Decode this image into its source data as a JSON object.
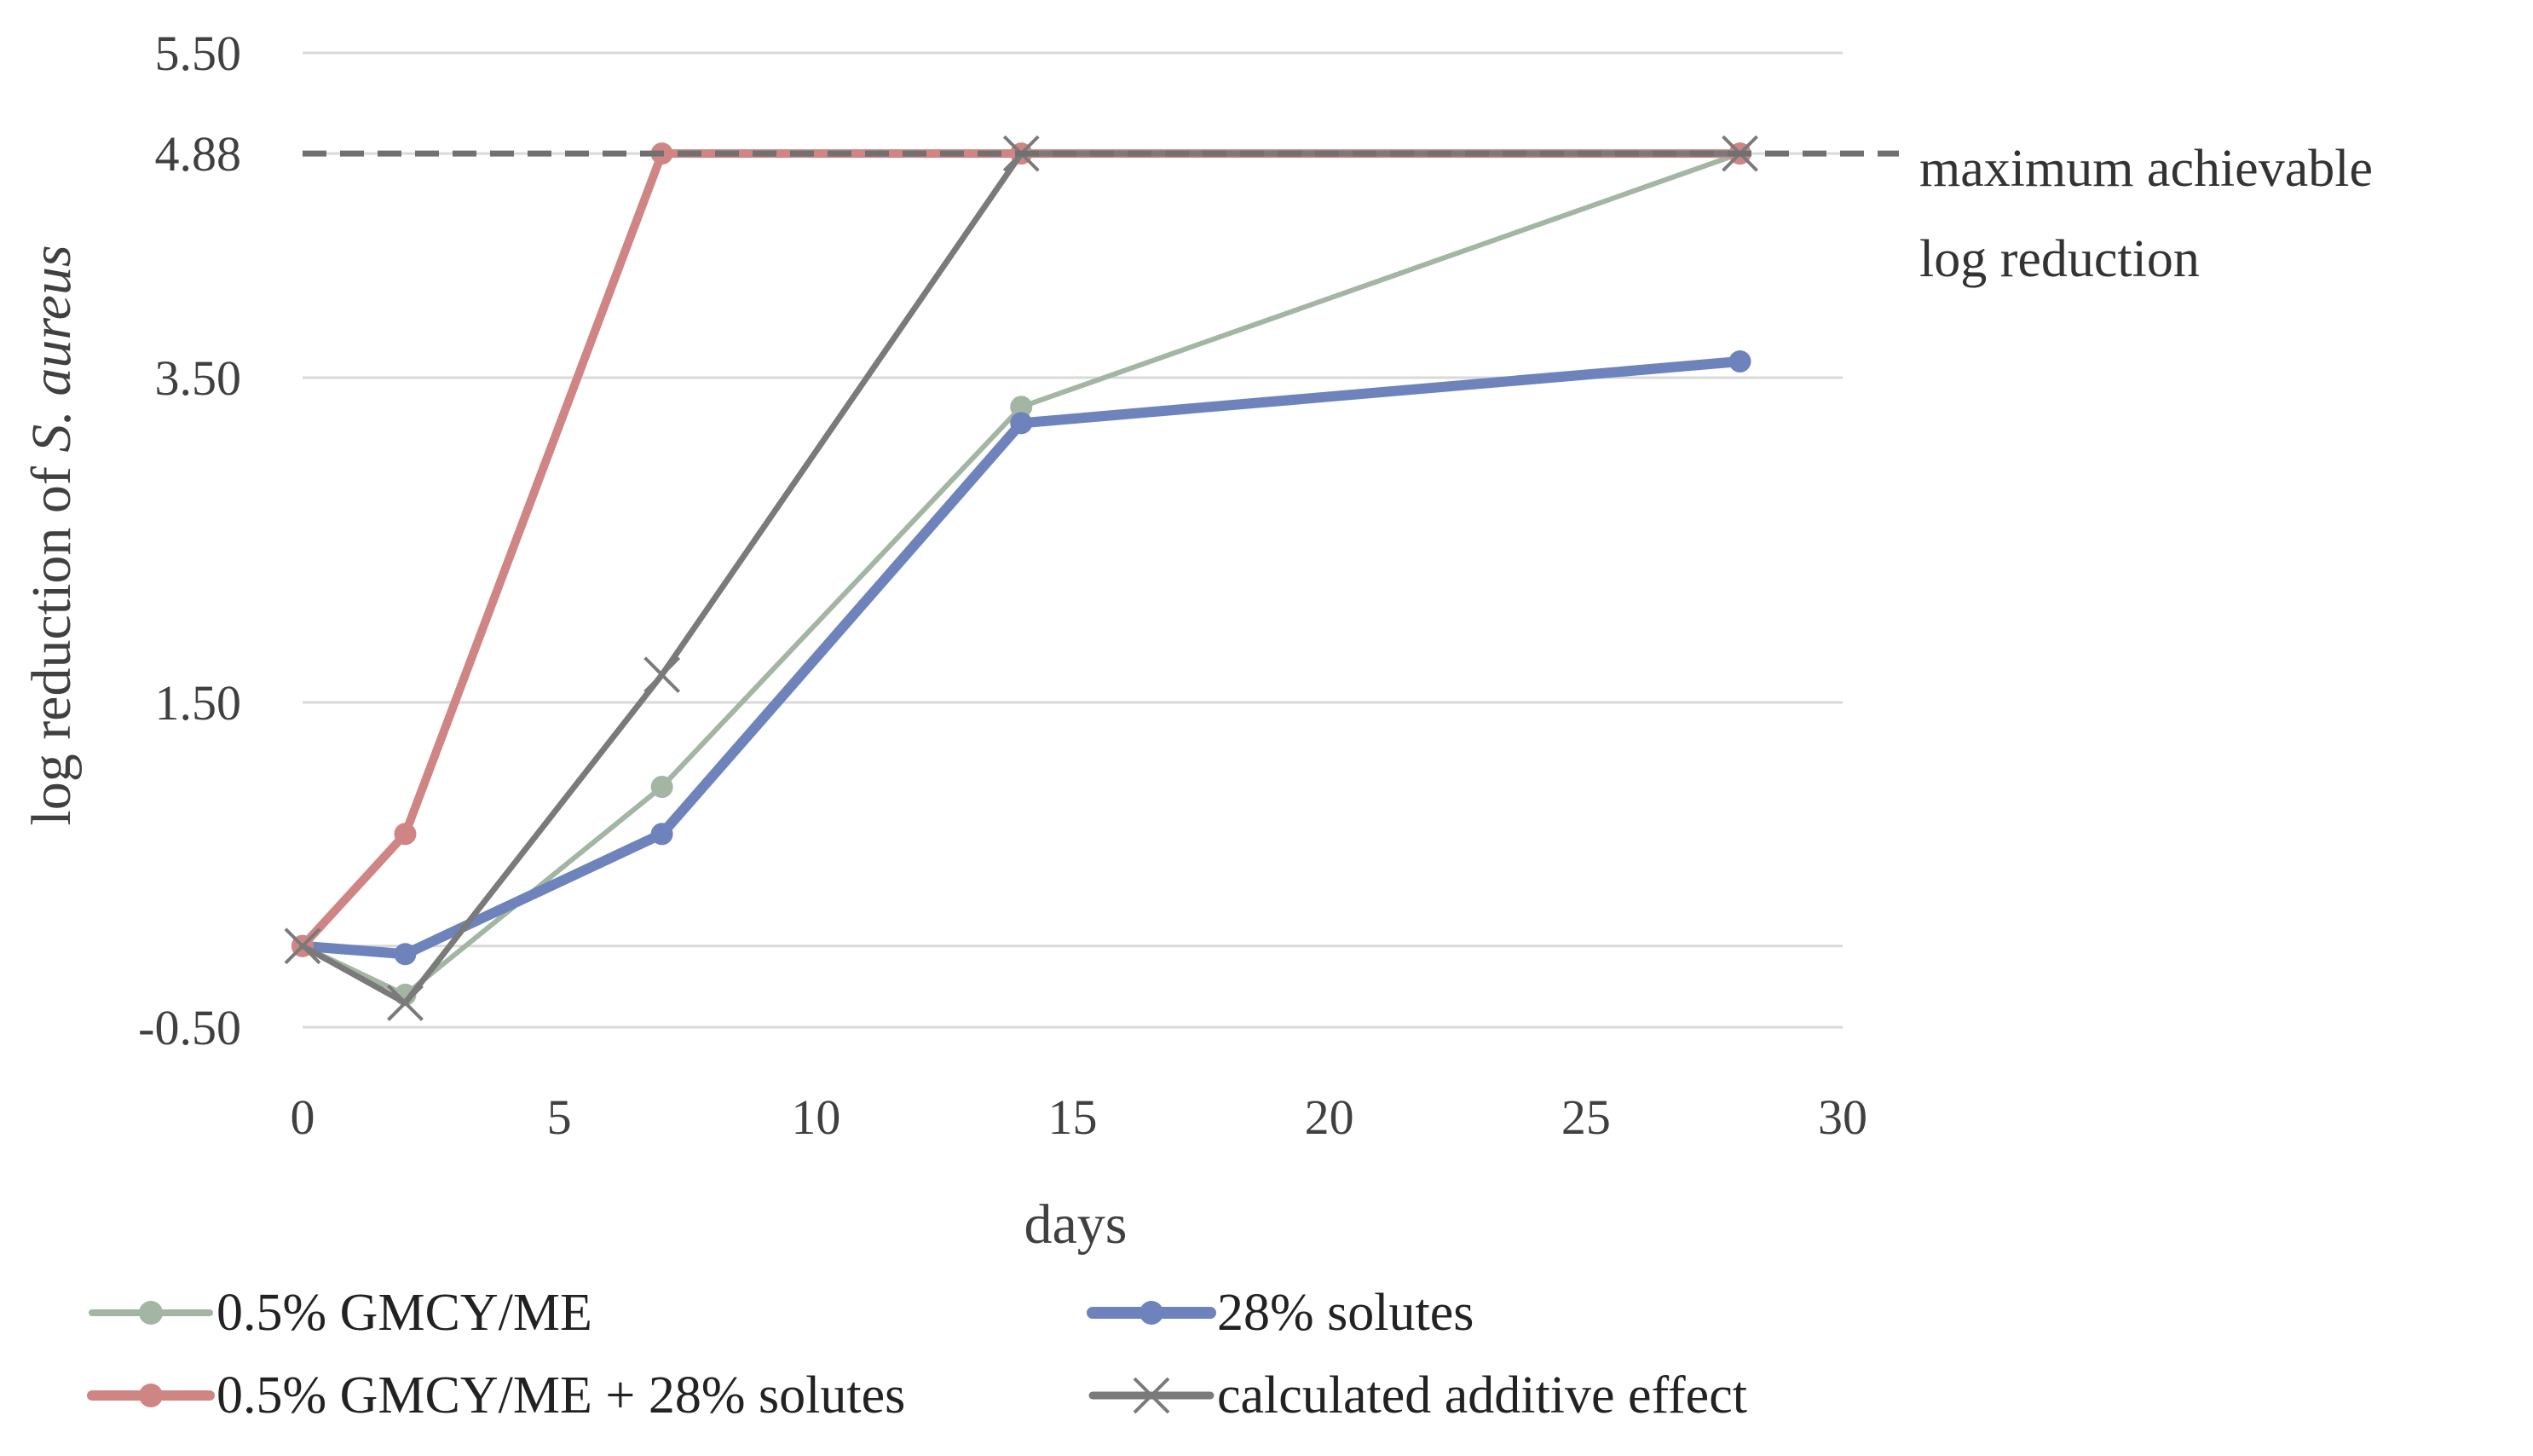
{
  "chart_data": {
    "type": "line",
    "title": "",
    "xlabel": "days",
    "ylabel_prefix": "log reduction of ",
    "ylabel_italic": "S. aureus",
    "xlim": [
      0,
      30
    ],
    "ylim": [
      -0.5,
      5.5
    ],
    "x_ticks": [
      0,
      5,
      10,
      15,
      20,
      25,
      30
    ],
    "y_tick_labels": [
      {
        "value": 5.5,
        "label": "5.50"
      },
      {
        "value": 4.88,
        "label": "4.88"
      },
      {
        "value": 3.5,
        "label": "3.50"
      },
      {
        "value": 1.5,
        "label": "1.50"
      },
      {
        "value": -0.5,
        "label": "-0.50"
      }
    ],
    "gridlines": [
      5.5,
      4.88,
      3.5,
      1.5,
      0,
      -0.5
    ],
    "grid": true,
    "legend_position": "bottom",
    "series": [
      {
        "name": "0.5% GMCY/ME",
        "color": "#a3b5a3",
        "marker": "circle",
        "x": [
          0,
          2,
          7,
          14,
          28
        ],
        "y": [
          0.0,
          -0.3,
          0.98,
          3.32,
          4.88
        ]
      },
      {
        "name": "28% solutes",
        "color": "#6e83bb",
        "marker": "circle",
        "x": [
          0,
          2,
          7,
          14,
          28
        ],
        "y": [
          0.0,
          -0.05,
          0.69,
          3.22,
          3.6
        ]
      },
      {
        "name": "0.5% GMCY/ME + 28% solutes",
        "color": "#d08585",
        "marker": "circle",
        "x": [
          0,
          2,
          7,
          14,
          28
        ],
        "y": [
          0.0,
          0.69,
          4.88,
          4.88,
          4.88
        ]
      },
      {
        "name": "calculated additive effect",
        "color": "#7a7a7a",
        "marker": "x",
        "x": [
          0,
          2,
          7,
          14,
          28
        ],
        "y": [
          0.0,
          -0.35,
          1.67,
          4.88,
          4.88
        ]
      }
    ],
    "reference_line": {
      "y": 4.88,
      "style": "dashed",
      "color": "#707070",
      "label_lines": [
        "maximum achievable",
        "log reduction"
      ]
    }
  }
}
